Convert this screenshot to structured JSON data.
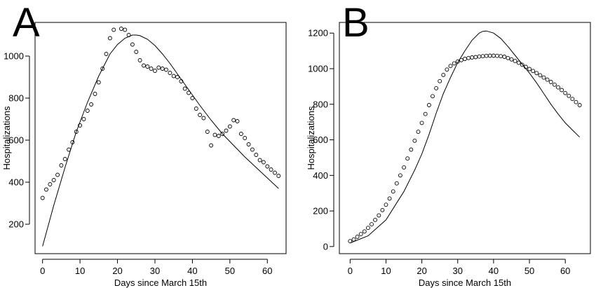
{
  "chart_data": [
    {
      "type": "scatter",
      "panel_label": "A",
      "xlabel": "Days since March 15th",
      "ylabel": "Hospitalizations",
      "xlim": [
        -2,
        65
      ],
      "ylim": [
        60,
        1160
      ],
      "xticks": [
        0,
        10,
        20,
        30,
        40,
        50,
        60
      ],
      "yticks": [
        200,
        400,
        600,
        800,
        1000
      ],
      "grid": false,
      "legend": "none",
      "series": [
        {
          "kind": "points",
          "marker": "open-circle",
          "x": [
            0,
            1,
            2,
            3,
            4,
            5,
            6,
            7,
            8,
            9,
            10,
            11,
            12,
            13,
            14,
            15,
            16,
            17,
            18,
            19,
            21,
            22,
            23,
            24,
            25,
            26,
            27,
            28,
            29,
            30,
            31,
            32,
            33,
            34,
            35,
            36,
            37,
            38,
            39,
            40,
            41,
            42,
            43,
            44,
            45,
            46,
            47,
            48,
            49,
            50,
            51,
            52,
            53,
            54,
            55,
            56,
            57,
            58,
            59,
            60,
            61,
            62,
            63
          ],
          "y": [
            325,
            365,
            390,
            410,
            435,
            480,
            510,
            555,
            590,
            640,
            670,
            700,
            740,
            770,
            820,
            875,
            940,
            1010,
            1085,
            1125,
            1130,
            1125,
            1100,
            1055,
            1020,
            980,
            955,
            950,
            940,
            930,
            945,
            940,
            935,
            920,
            905,
            900,
            880,
            845,
            825,
            800,
            750,
            720,
            705,
            640,
            575,
            625,
            620,
            630,
            645,
            665,
            695,
            690,
            630,
            610,
            580,
            555,
            530,
            505,
            495,
            475,
            460,
            445,
            430
          ]
        },
        {
          "kind": "line",
          "x": [
            0,
            3,
            6,
            9,
            12,
            15,
            18,
            20,
            22,
            24,
            25,
            26,
            28,
            30,
            32,
            34,
            36,
            38,
            40,
            42,
            45,
            48,
            51,
            54,
            57,
            60,
            63
          ],
          "y": [
            95,
            290,
            470,
            640,
            780,
            905,
            1010,
            1055,
            1085,
            1100,
            1100,
            1097,
            1080,
            1050,
            1010,
            965,
            915,
            865,
            815,
            765,
            695,
            630,
            575,
            520,
            470,
            420,
            370
          ]
        }
      ]
    },
    {
      "type": "scatter",
      "panel_label": "B",
      "xlabel": "Days since March 15th",
      "ylabel": "Hospitalizations",
      "xlim": [
        -3,
        67
      ],
      "ylim": [
        -40,
        1260
      ],
      "xticks": [
        0,
        10,
        20,
        30,
        40,
        50,
        60
      ],
      "yticks": [
        0,
        200,
        400,
        600,
        800,
        1000,
        1200
      ],
      "grid": false,
      "legend": "none",
      "series": [
        {
          "kind": "points",
          "marker": "open-circle",
          "x": [
            0,
            1,
            2,
            3,
            4,
            5,
            6,
            7,
            8,
            9,
            10,
            11,
            12,
            13,
            14,
            15,
            16,
            17,
            18,
            19,
            20,
            21,
            22,
            23,
            24,
            25,
            26,
            27,
            28,
            29,
            30,
            31,
            32,
            33,
            34,
            35,
            36,
            37,
            38,
            39,
            40,
            41,
            42,
            43,
            44,
            45,
            46,
            47,
            48,
            49,
            50,
            51,
            52,
            53,
            54,
            55,
            56,
            57,
            58,
            59,
            60,
            61,
            62,
            63,
            64
          ],
          "y": [
            30,
            40,
            55,
            70,
            85,
            105,
            125,
            150,
            175,
            205,
            235,
            270,
            310,
            355,
            400,
            445,
            495,
            545,
            595,
            645,
            695,
            745,
            795,
            845,
            890,
            930,
            965,
            995,
            1015,
            1030,
            1040,
            1048,
            1055,
            1060,
            1063,
            1065,
            1068,
            1070,
            1072,
            1073,
            1073,
            1072,
            1070,
            1067,
            1060,
            1052,
            1043,
            1033,
            1022,
            1010,
            998,
            987,
            975,
            963,
            950,
            938,
            925,
            910,
            895,
            880,
            863,
            847,
            830,
            812,
            795
          ]
        },
        {
          "kind": "line",
          "x": [
            0,
            5,
            10,
            15,
            18,
            20,
            22,
            24,
            26,
            28,
            30,
            32,
            34,
            36,
            37,
            38,
            40,
            42,
            44,
            46,
            48,
            50,
            52,
            54,
            56,
            58,
            60,
            62,
            64
          ],
          "y": [
            20,
            60,
            150,
            310,
            430,
            520,
            630,
            750,
            860,
            950,
            1035,
            1100,
            1160,
            1200,
            1210,
            1212,
            1200,
            1170,
            1125,
            1075,
            1025,
            975,
            920,
            860,
            800,
            745,
            695,
            655,
            615
          ]
        }
      ]
    }
  ]
}
